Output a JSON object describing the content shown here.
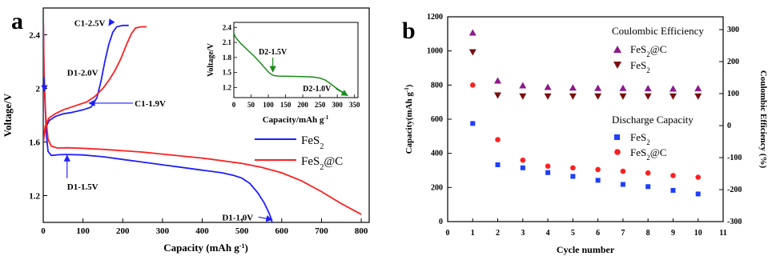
{
  "figure": {
    "panel_a_letter": "a",
    "panel_b_letter": "b"
  },
  "chart_data": [
    {
      "panel": "a",
      "type": "line",
      "xlabel": "Capacity (mAh g",
      "xlabel_sup": "-1",
      "xlabel_close": ")",
      "ylabel": "Voltage/V",
      "xlim": [
        0,
        820
      ],
      "ylim": [
        1.0,
        2.6
      ],
      "xticks": [
        0,
        100,
        200,
        300,
        400,
        500,
        600,
        700,
        800
      ],
      "yticks": [
        1.2,
        1.6,
        2.0,
        2.4
      ],
      "legend": {
        "placement": "bottom-right",
        "entries": [
          {
            "base": "FeS",
            "sub": "2",
            "tail": ""
          },
          {
            "base": "FeS",
            "sub": "2",
            "tail": "@C"
          }
        ]
      },
      "series": [
        {
          "name": "FeS2",
          "color": "#1f1fff",
          "discharge": [
            [
              0,
              2.55
            ],
            [
              2,
              2.1
            ],
            [
              5,
              1.85
            ],
            [
              8,
              1.65
            ],
            [
              12,
              1.53
            ],
            [
              20,
              1.5
            ],
            [
              40,
              1.505
            ],
            [
              60,
              1.507
            ],
            [
              100,
              1.503
            ],
            [
              150,
              1.49
            ],
            [
              200,
              1.47
            ],
            [
              250,
              1.45
            ],
            [
              300,
              1.43
            ],
            [
              350,
              1.41
            ],
            [
              400,
              1.39
            ],
            [
              450,
              1.37
            ],
            [
              480,
              1.35
            ],
            [
              500,
              1.33
            ],
            [
              520,
              1.29
            ],
            [
              540,
              1.22
            ],
            [
              555,
              1.15
            ],
            [
              565,
              1.09
            ],
            [
              572,
              1.04
            ],
            [
              576,
              1.0
            ]
          ],
          "charge": [
            [
              0,
              1.6
            ],
            [
              5,
              1.7
            ],
            [
              15,
              1.76
            ],
            [
              30,
              1.79
            ],
            [
              50,
              1.81
            ],
            [
              70,
              1.82
            ],
            [
              100,
              1.84
            ],
            [
              120,
              1.86
            ],
            [
              135,
              1.93
            ],
            [
              145,
              2.05
            ],
            [
              155,
              2.2
            ],
            [
              165,
              2.33
            ],
            [
              175,
              2.42
            ],
            [
              185,
              2.46
            ],
            [
              200,
              2.47
            ],
            [
              215,
              2.47
            ]
          ]
        },
        {
          "name": "FeS2@C",
          "color": "#ff1f1f",
          "discharge": [
            [
              0,
              2.55
            ],
            [
              2,
              2.1
            ],
            [
              6,
              1.8
            ],
            [
              12,
              1.62
            ],
            [
              20,
              1.57
            ],
            [
              35,
              1.555
            ],
            [
              60,
              1.557
            ],
            [
              100,
              1.553
            ],
            [
              150,
              1.545
            ],
            [
              200,
              1.535
            ],
            [
              250,
              1.525
            ],
            [
              300,
              1.51
            ],
            [
              350,
              1.495
            ],
            [
              400,
              1.48
            ],
            [
              450,
              1.46
            ],
            [
              500,
              1.44
            ],
            [
              550,
              1.41
            ],
            [
              600,
              1.37
            ],
            [
              650,
              1.31
            ],
            [
              700,
              1.23
            ],
            [
              750,
              1.14
            ],
            [
              800,
              1.06
            ]
          ],
          "charge": [
            [
              0,
              1.6
            ],
            [
              5,
              1.72
            ],
            [
              15,
              1.78
            ],
            [
              30,
              1.81
            ],
            [
              50,
              1.84
            ],
            [
              80,
              1.87
            ],
            [
              110,
              1.9
            ],
            [
              130,
              1.94
            ],
            [
              150,
              2.0
            ],
            [
              165,
              2.06
            ],
            [
              180,
              2.13
            ],
            [
              195,
              2.22
            ],
            [
              210,
              2.33
            ],
            [
              222,
              2.41
            ],
            [
              232,
              2.45
            ],
            [
              245,
              2.46
            ],
            [
              260,
              2.46
            ]
          ]
        }
      ],
      "annotations": [
        {
          "text": "C1-2.5V",
          "xy": [
            165,
            2.47
          ],
          "text_at": [
            78,
            2.49
          ]
        },
        {
          "text": "D1-2.0V",
          "xy": [
            3,
            1.98
          ],
          "text_at": [
            60,
            2.12
          ]
        },
        {
          "text": "C1-1.9V",
          "xy": [
            115,
            1.89
          ],
          "text_at": [
            230,
            1.89
          ]
        },
        {
          "text": "D1-1.5V",
          "xy": [
            60,
            1.5
          ],
          "text_at": [
            60,
            1.27
          ]
        },
        {
          "text": "D1-1.0V",
          "xy": [
            576,
            1.02
          ],
          "text_at": [
            450,
            1.04
          ]
        }
      ],
      "inset": {
        "type": "line",
        "xlabel": "Capacity/mAh g",
        "xlabel_sup": "-1",
        "ylabel": "Voltage/V",
        "xlim": [
          0,
          360
        ],
        "ylim": [
          1.0,
          2.5
        ],
        "xticks": [
          0,
          50,
          100,
          150,
          200,
          250,
          300,
          350
        ],
        "yticks": [
          1.2,
          1.5,
          1.8,
          2.1,
          2.4
        ],
        "color": "#1a8c1a",
        "values": [
          [
            0,
            2.28
          ],
          [
            5,
            2.2
          ],
          [
            20,
            2.08
          ],
          [
            40,
            1.95
          ],
          [
            60,
            1.82
          ],
          [
            80,
            1.67
          ],
          [
            95,
            1.55
          ],
          [
            105,
            1.48
          ],
          [
            115,
            1.44
          ],
          [
            130,
            1.43
          ],
          [
            160,
            1.425
          ],
          [
            200,
            1.42
          ],
          [
            230,
            1.41
          ],
          [
            250,
            1.39
          ],
          [
            265,
            1.35
          ],
          [
            280,
            1.28
          ],
          [
            295,
            1.2
          ],
          [
            310,
            1.13
          ],
          [
            320,
            1.09
          ],
          [
            330,
            1.04
          ]
        ],
        "annotations": [
          {
            "text": "D2-1.5V",
            "xy": [
              113,
              1.48
            ],
            "text_at": [
              113,
              1.86
            ]
          },
          {
            "text": "D2-1.0V",
            "xy": [
              330,
              1.04
            ],
            "text_at": [
              200,
              1.13
            ]
          }
        ]
      }
    },
    {
      "panel": "b",
      "type": "scatter",
      "xlabel": "Cycle number",
      "ylabel": "Capacity(mAh g",
      "ylabel_sup": "-1",
      "ylabel_close": ")",
      "y2label": "Coulombic Efficiency (%)",
      "xlim": [
        0,
        11
      ],
      "ylim": [
        0,
        1200
      ],
      "y2lim": [
        -300,
        340
      ],
      "xticks": [
        0,
        1,
        2,
        3,
        4,
        5,
        6,
        7,
        8,
        9,
        10,
        11
      ],
      "yticks": [
        0,
        200,
        400,
        600,
        800,
        1000,
        1200
      ],
      "y2ticks": [
        -300,
        -200,
        -100,
        0,
        100,
        200,
        300
      ],
      "x": [
        1,
        2,
        3,
        4,
        5,
        6,
        7,
        8,
        9,
        10
      ],
      "legend_groups": [
        {
          "title": "Coulombic Efficiency",
          "entries": [
            {
              "base": "FeS",
              "sub": "2",
              "tail": "@C",
              "marker": "triangle-up",
              "color": "#8b1a8b"
            },
            {
              "base": "FeS",
              "sub": "2",
              "tail": "",
              "marker": "triangle-down",
              "color": "#7a0f0f"
            }
          ]
        },
        {
          "title": "Discharge Capacity",
          "entries": [
            {
              "base": "FeS",
              "sub": "2",
              "tail": "",
              "marker": "square",
              "color": "#1f3fff"
            },
            {
              "base": "FeS",
              "sub": "2",
              "tail": "@C",
              "marker": "circle",
              "color": "#ff2020"
            }
          ]
        }
      ],
      "series": [
        {
          "name": "Coulombic Efficiency FeS2@C",
          "axis": "right",
          "marker": "triangle-up",
          "color": "#8b1a8b",
          "values": [
            290,
            140,
            125,
            120,
            118,
            117,
            117,
            116,
            115,
            116
          ]
        },
        {
          "name": "Coulombic Efficiency FeS2",
          "axis": "right",
          "marker": "triangle-down",
          "color": "#7a0f0f",
          "values": [
            230,
            95,
            92,
            92,
            92,
            92,
            92,
            92,
            92,
            92
          ]
        },
        {
          "name": "Discharge Capacity FeS2",
          "axis": "left",
          "marker": "square",
          "color": "#1f3fff",
          "values": [
            575,
            333,
            315,
            287,
            265,
            242,
            218,
            205,
            183,
            162
          ]
        },
        {
          "name": "Discharge Capacity FeS2@C",
          "axis": "left",
          "marker": "circle",
          "color": "#ff2020",
          "values": [
            800,
            480,
            360,
            325,
            315,
            305,
            295,
            285,
            270,
            260
          ]
        }
      ]
    }
  ]
}
